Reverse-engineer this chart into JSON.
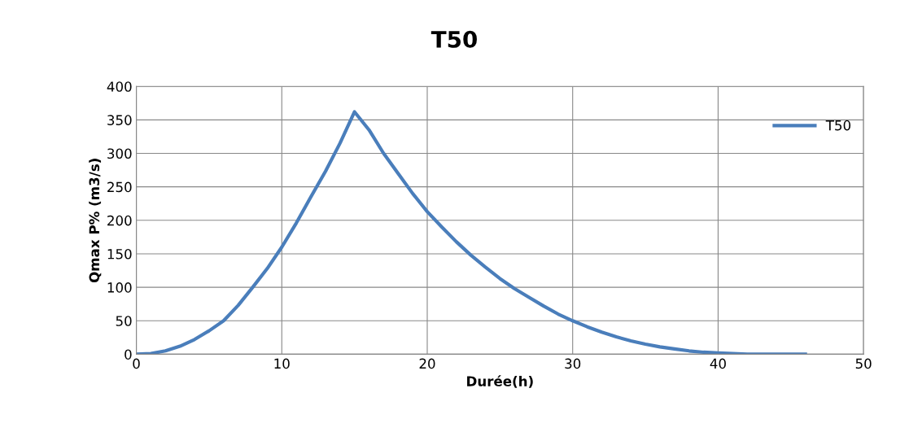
{
  "chart_data": {
    "type": "line",
    "title": "T50",
    "xlabel": "Durée(h)",
    "ylabel": "Qmax P% (m3/s)",
    "x": [
      0,
      1,
      2,
      3,
      4,
      5,
      6,
      7,
      8,
      9,
      10,
      11,
      12,
      13,
      14,
      15,
      16,
      17,
      18,
      19,
      20,
      21,
      22,
      23,
      24,
      25,
      26,
      27,
      28,
      29,
      30,
      31,
      32,
      33,
      34,
      35,
      36,
      37,
      38,
      39,
      40,
      41,
      42,
      43,
      44,
      45,
      46
    ],
    "series": [
      {
        "name": "T50",
        "color": "#4a7ebb",
        "values": [
          0,
          1,
          5,
          12,
          22,
          35,
          50,
          73,
          100,
          128,
          160,
          196,
          235,
          273,
          315,
          362,
          335,
          300,
          270,
          240,
          213,
          190,
          168,
          148,
          130,
          113,
          98,
          85,
          72,
          60,
          50,
          41,
          33,
          26,
          20,
          15,
          11,
          8,
          5,
          3,
          2,
          1,
          0,
          0,
          0,
          0,
          0
        ]
      }
    ],
    "xlim": [
      0,
      50
    ],
    "xticks": [
      0,
      10,
      20,
      30,
      40,
      50
    ],
    "ylim": [
      0,
      400
    ],
    "yticks": [
      0,
      50,
      100,
      150,
      200,
      250,
      300,
      350,
      400
    ],
    "grid": true,
    "legend": "right",
    "marker": "none",
    "line_style": "solid"
  }
}
